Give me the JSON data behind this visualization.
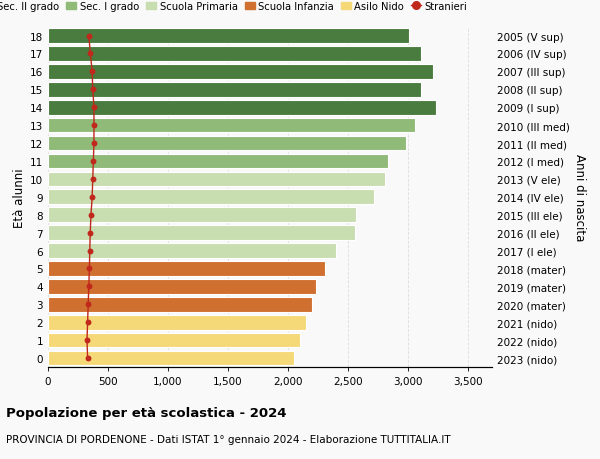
{
  "ages": [
    0,
    1,
    2,
    3,
    4,
    5,
    6,
    7,
    8,
    9,
    10,
    11,
    12,
    13,
    14,
    15,
    16,
    17,
    18
  ],
  "bar_values": [
    2050,
    2100,
    2150,
    2200,
    2230,
    2310,
    2400,
    2560,
    2570,
    2720,
    2810,
    2830,
    2980,
    3060,
    3230,
    3110,
    3210,
    3110,
    3010
  ],
  "stranieri": [
    330,
    325,
    330,
    335,
    340,
    345,
    348,
    352,
    358,
    368,
    373,
    378,
    383,
    383,
    383,
    373,
    368,
    353,
    340
  ],
  "right_labels": [
    "2023 (nido)",
    "2022 (nido)",
    "2021 (nido)",
    "2020 (mater)",
    "2019 (mater)",
    "2018 (mater)",
    "2017 (I ele)",
    "2016 (II ele)",
    "2015 (III ele)",
    "2014 (IV ele)",
    "2013 (V ele)",
    "2012 (I med)",
    "2011 (II med)",
    "2010 (III med)",
    "2009 (I sup)",
    "2008 (II sup)",
    "2007 (III sup)",
    "2006 (IV sup)",
    "2005 (V sup)"
  ],
  "colors": {
    "Sec. II grado": "#4a7c3f",
    "Sec. I grado": "#8fba78",
    "Scuola Primaria": "#c8ddb0",
    "Scuola Infanzia": "#d07030",
    "Asilo Nido": "#f5d878",
    "Stranieri": "#c0281c"
  },
  "bar_colors": [
    "#f5d878",
    "#f5d878",
    "#f5d878",
    "#d07030",
    "#d07030",
    "#d07030",
    "#c8ddb0",
    "#c8ddb0",
    "#c8ddb0",
    "#c8ddb0",
    "#c8ddb0",
    "#8fba78",
    "#8fba78",
    "#8fba78",
    "#4a7c3f",
    "#4a7c3f",
    "#4a7c3f",
    "#4a7c3f",
    "#4a7c3f"
  ],
  "title": "Popolazione per età scolastica - 2024",
  "subtitle": "PROVINCIA DI PORDENONE - Dati ISTAT 1° gennaio 2024 - Elaborazione TUTTITALIA.IT",
  "ylabel": "Età alunni",
  "right_ylabel": "Anni di nascita",
  "xlim": [
    0,
    3700
  ],
  "xticks": [
    0,
    500,
    1000,
    1500,
    2000,
    2500,
    3000,
    3500
  ],
  "xtick_labels": [
    "0",
    "500",
    "1,000",
    "1,500",
    "2,000",
    "2,500",
    "3,000",
    "3,500"
  ],
  "background_color": "#f9f9f9",
  "grid_color": "#dddddd",
  "bar_height": 0.82
}
